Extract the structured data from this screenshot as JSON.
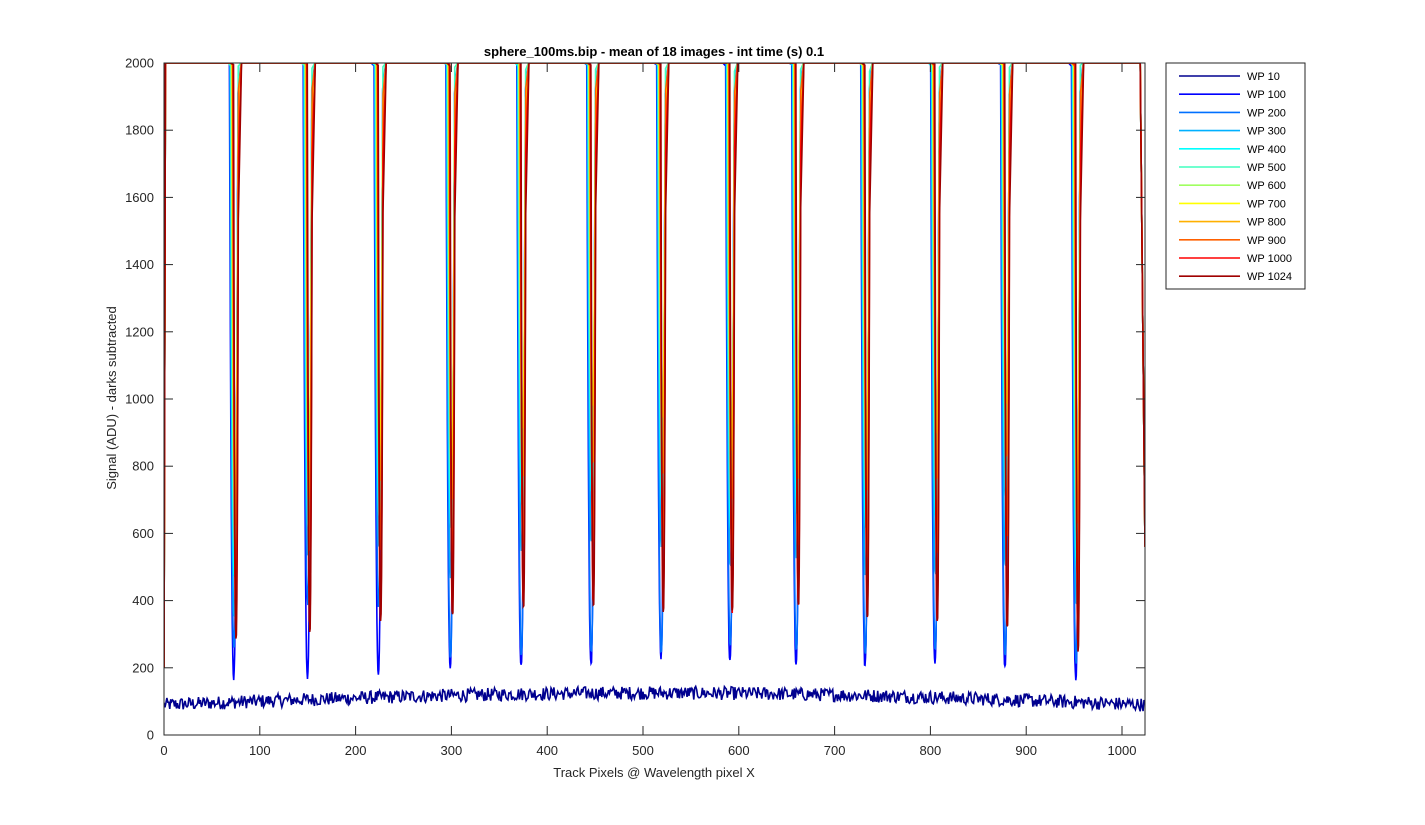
{
  "chart_data": {
    "type": "line",
    "title": "sphere_100ms.bip - mean of 18 images - int time (s) 0.1",
    "xlabel": "Track Pixels @ Wavelength pixel X",
    "ylabel": "Signal (ADU) - darks subtracted",
    "xlim": [
      0,
      1024
    ],
    "ylim": [
      0,
      2000
    ],
    "xticks": [
      "0",
      "100",
      "200",
      "300",
      "400",
      "500",
      "600",
      "700",
      "800",
      "900",
      "1000"
    ],
    "yticks": [
      "0",
      "200",
      "400",
      "600",
      "800",
      "1000",
      "1200",
      "1400",
      "1600",
      "1800",
      "2000"
    ],
    "grid": false,
    "legend_position": "outside-top-right",
    "peak_centers": [
      74,
      151,
      225,
      300,
      374,
      447,
      520,
      592,
      661,
      733,
      806,
      879,
      953
    ],
    "series": [
      {
        "name": "WP 10",
        "color": "#00008f",
        "baseline": 105,
        "trough_values": [
          115,
          100,
          108,
          118,
          122,
          126,
          128,
          120,
          128,
          126,
          124,
          112,
          104
        ]
      },
      {
        "name": "WP 100",
        "color": "#0000ff",
        "baseline": 2000,
        "trough_values": [
          170,
          175,
          185,
          205,
          200,
          205,
          235,
          215,
          210,
          205,
          210,
          200,
          170
        ]
      },
      {
        "name": "WP 200",
        "color": "#0070ff",
        "baseline": 2000,
        "trough_values": [
          260,
          390,
          385,
          230,
          240,
          245,
          240,
          265,
          250,
          245,
          245,
          230,
          215
        ]
      },
      {
        "name": "WP 300",
        "color": "#00b0ff",
        "baseline": 2000,
        "trough_values": [
          350,
          540,
          560,
          470,
          540,
          570,
          560,
          500,
          520,
          480,
          480,
          500,
          390
        ]
      },
      {
        "name": "WP 400",
        "color": "#00ffff",
        "baseline": 2000,
        "trough_values": [
          470,
          620,
          650,
          620,
          690,
          720,
          700,
          620,
          660,
          620,
          650,
          720,
          500
        ]
      },
      {
        "name": "WP 500",
        "color": "#40ffbf",
        "baseline": 2000,
        "trough_values": [
          560,
          700,
          740,
          700,
          780,
          820,
          800,
          700,
          760,
          720,
          750,
          820,
          590
        ]
      },
      {
        "name": "WP 600",
        "color": "#a0ff60",
        "baseline": 2000,
        "trough_values": [
          640,
          760,
          800,
          760,
          850,
          900,
          880,
          780,
          850,
          800,
          830,
          900,
          660
        ]
      },
      {
        "name": "WP 700",
        "color": "#ffff00",
        "baseline": 2000,
        "trough_values": [
          700,
          820,
          860,
          830,
          920,
          980,
          950,
          850,
          920,
          870,
          900,
          980,
          720
        ]
      },
      {
        "name": "WP 800",
        "color": "#ffb000",
        "baseline": 2000,
        "trough_values": [
          620,
          700,
          760,
          700,
          760,
          800,
          780,
          700,
          760,
          720,
          760,
          830,
          630
        ]
      },
      {
        "name": "WP 900",
        "color": "#ff6000",
        "baseline": 2000,
        "trough_values": [
          480,
          540,
          560,
          520,
          560,
          580,
          560,
          520,
          560,
          520,
          540,
          600,
          460
        ]
      },
      {
        "name": "WP 1000",
        "color": "#ff0000",
        "baseline": 2000,
        "trough_values": [
          300,
          330,
          350,
          360,
          380,
          390,
          380,
          370,
          390,
          360,
          340,
          320,
          270
        ]
      },
      {
        "name": "WP 1024",
        "color": "#a00000",
        "baseline": 2000,
        "trough_values": [
          280,
          310,
          340,
          350,
          370,
          380,
          370,
          360,
          380,
          350,
          330,
          310,
          250
        ]
      }
    ]
  }
}
